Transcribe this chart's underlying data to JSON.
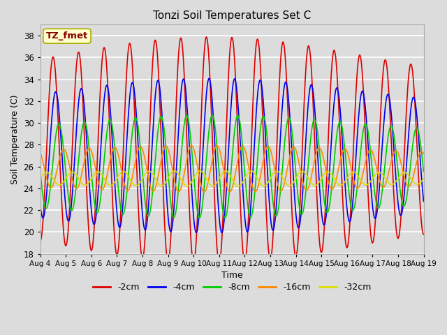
{
  "title": "Tonzi Soil Temperatures Set C",
  "xlabel": "Time",
  "ylabel": "Soil Temperature (C)",
  "ylim": [
    18,
    39
  ],
  "annotation": "TZ_fmet",
  "annotation_color": "#8B0000",
  "annotation_bg": "#FFFFCC",
  "annotation_border": "#AAAA00",
  "series_order": [
    "-2cm",
    "-4cm",
    "-8cm",
    "-16cm",
    "-32cm"
  ],
  "series": {
    "-2cm": {
      "color": "#DD0000",
      "amplitude": 8.8,
      "mean": 27.5,
      "lag_hrs": 0.0
    },
    "-4cm": {
      "color": "#0000EE",
      "amplitude": 6.0,
      "mean": 27.0,
      "lag_hrs": 2.5
    },
    "-8cm": {
      "color": "#00CC00",
      "amplitude": 4.0,
      "mean": 26.0,
      "lag_hrs": 5.5
    },
    "-16cm": {
      "color": "#FF8800",
      "amplitude": 1.8,
      "mean": 25.8,
      "lag_hrs": 10.0
    },
    "-32cm": {
      "color": "#DDDD00",
      "amplitude": 0.6,
      "mean": 24.9,
      "lag_hrs": 18.0
    }
  },
  "tick_labels": [
    "Aug 4",
    "Aug 5",
    "Aug 6",
    "Aug 7",
    "Aug 8",
    "Aug 9",
    "Aug 10",
    "Aug 11",
    "Aug 12",
    "Aug 13",
    "Aug 14",
    "Aug 15",
    "Aug 16",
    "Aug 17",
    "Aug 18",
    "Aug 19"
  ],
  "bg_color": "#DCDCDC",
  "plot_bg_color": "#DCDCDC",
  "grid_color": "#FFFFFF",
  "linewidth": 1.2,
  "period_hours": 24,
  "days_total": 15
}
